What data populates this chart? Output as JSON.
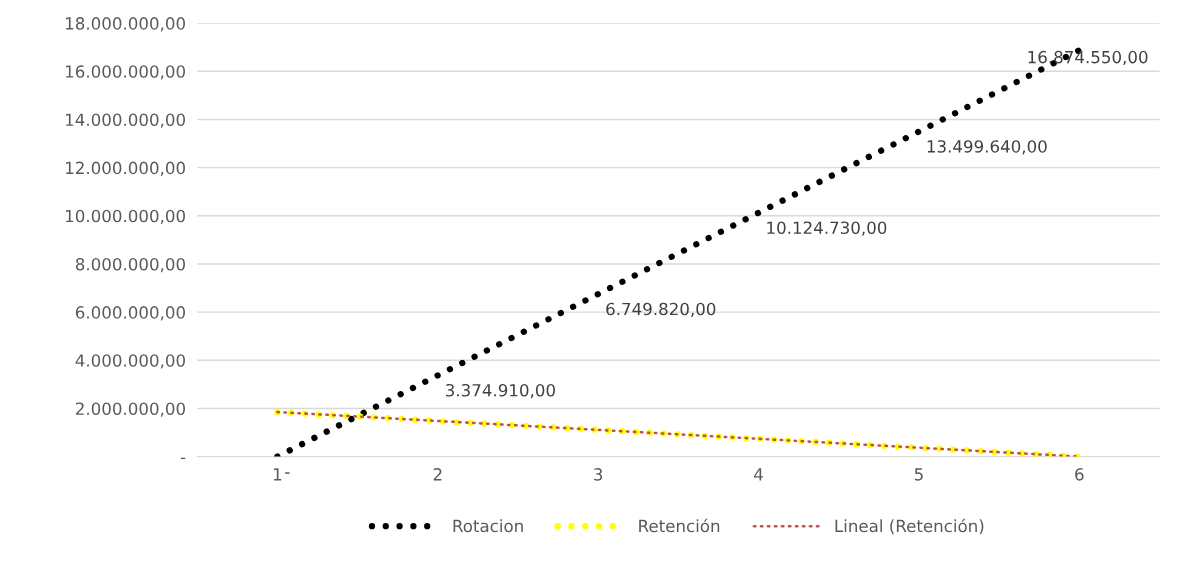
{
  "chart_data": {
    "type": "line",
    "x": [
      1,
      2,
      3,
      4,
      5,
      6
    ],
    "series": [
      {
        "name": "Rotacion",
        "color": "#000000",
        "line_style": "dotted",
        "values": [
          0,
          3374910,
          6749820,
          10124730,
          13499640,
          16874550
        ],
        "value_labels": [
          "-",
          "3.374.910,00",
          "6.749.820,00",
          "10.124.730,00",
          "13.499.640,00",
          "16.874.550,00"
        ]
      },
      {
        "name": "Retención",
        "color": "#ffff00",
        "line_style": "dotted",
        "values": [
          1850000,
          1480000,
          1110000,
          740000,
          370000,
          0
        ]
      },
      {
        "name": "Lineal (Retención)",
        "type": "line",
        "color": "#c0504d",
        "line_style": "dotted",
        "x": [
          1,
          6
        ],
        "values": [
          1850000,
          0
        ]
      }
    ],
    "xlim": [
      0.5,
      6.5
    ],
    "xticks": [
      1,
      2,
      3,
      4,
      5,
      6
    ],
    "ylim": [
      0,
      18000000
    ],
    "yticks": [
      {
        "value": 0,
        "label": "-"
      },
      {
        "value": 2000000,
        "label": "2.000.000,00"
      },
      {
        "value": 4000000,
        "label": "4.000.000,00"
      },
      {
        "value": 6000000,
        "label": "6.000.000,00"
      },
      {
        "value": 8000000,
        "label": "8.000.000,00"
      },
      {
        "value": 10000000,
        "label": "10.000.000,00"
      },
      {
        "value": 12000000,
        "label": "12.000.000,00"
      },
      {
        "value": 14000000,
        "label": "14.000.000,00"
      },
      {
        "value": 16000000,
        "label": "16.000.000,00"
      },
      {
        "value": 18000000,
        "label": "18.000.000,00"
      }
    ],
    "grid": "y",
    "legend": "bottom",
    "marker": "none"
  }
}
